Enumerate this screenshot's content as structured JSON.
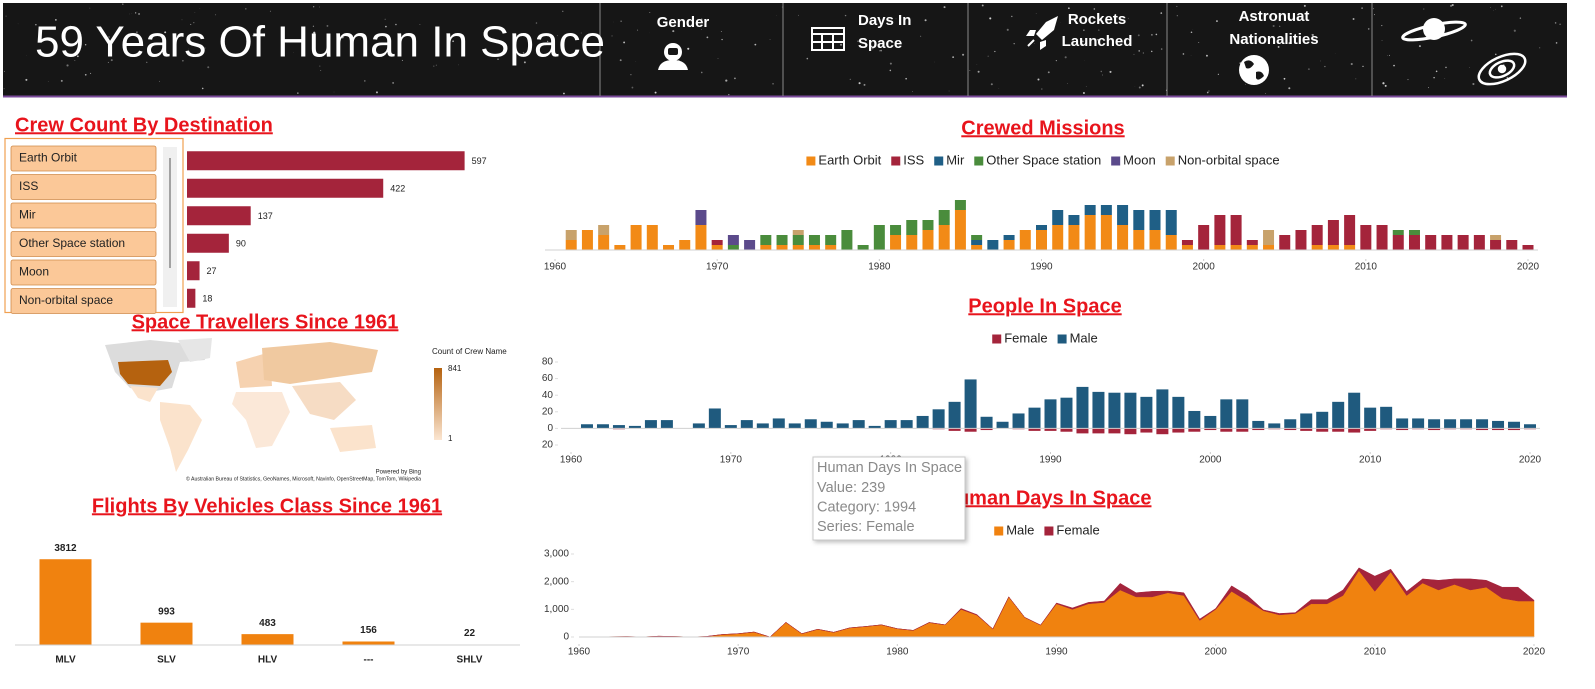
{
  "header": {
    "title": "59 Years Of Human In Space",
    "nav": [
      {
        "lines": [
          "Gender"
        ]
      },
      {
        "lines": [
          "Days In",
          "Space"
        ]
      },
      {
        "lines": [
          "Rockets",
          "Launched"
        ]
      },
      {
        "lines": [
          "Astronuat",
          "Nationalities"
        ]
      }
    ]
  },
  "map": {
    "title": "Space Travellers Since 1961",
    "legend_title": "Count of Crew Name",
    "legend_max": 841,
    "legend_min": 1,
    "credit": "Powered by Bing",
    "attribution": "© Australian Bureau of Statistics, GeoNames, Microsoft, Navinfo, OpenStreetMap, TomTom, Wikipedia"
  },
  "tooltip": {
    "title": "Human Days In Space",
    "lines": [
      "Value: 239",
      "Category: 1994",
      "Series: Female"
    ]
  },
  "chart_data": [
    {
      "type": "bar",
      "horizontal": true,
      "title": "Crew Count By Destination",
      "categories": [
        "Earth Orbit",
        "ISS",
        "Mir",
        "Other Space station",
        "Moon",
        "Non-orbital space"
      ],
      "values": [
        597,
        422,
        137,
        90,
        27,
        18
      ],
      "color": "#a4243b",
      "xlim": [
        0,
        600
      ]
    },
    {
      "type": "bar",
      "stacked": true,
      "title": "Crewed Missions",
      "legend": "top",
      "x": [
        1961,
        1962,
        1963,
        1964,
        1965,
        1966,
        1967,
        1968,
        1969,
        1970,
        1971,
        1972,
        1973,
        1974,
        1975,
        1976,
        1977,
        1978,
        1979,
        1980,
        1981,
        1982,
        1983,
        1984,
        1985,
        1986,
        1987,
        1988,
        1989,
        1990,
        1991,
        1992,
        1993,
        1994,
        1995,
        1996,
        1997,
        1998,
        1999,
        2000,
        2001,
        2002,
        2003,
        2004,
        2005,
        2006,
        2007,
        2008,
        2009,
        2010,
        2011,
        2012,
        2013,
        2014,
        2015,
        2016,
        2017,
        2018,
        2019,
        2020
      ],
      "xlim": [
        1960,
        2020
      ],
      "xticks": [
        1960,
        1970,
        1980,
        1990,
        2000,
        2010,
        2020
      ],
      "ylim": [
        0,
        10
      ],
      "series": [
        {
          "name": "Earth Orbit",
          "color": "#f28a16",
          "values": [
            2,
            4,
            3,
            1,
            5,
            5,
            1,
            2,
            5,
            1,
            0,
            0,
            1,
            1,
            1,
            1,
            1,
            0,
            0,
            0,
            3,
            3,
            4,
            5,
            8,
            1,
            0,
            2,
            4,
            4,
            5,
            5,
            7,
            7,
            5,
            4,
            4,
            3,
            1,
            0,
            1,
            1,
            1,
            1,
            0,
            0,
            1,
            1,
            1,
            0,
            0,
            0,
            0,
            0,
            0,
            0,
            0,
            0,
            0,
            0
          ]
        },
        {
          "name": "ISS",
          "color": "#a4243b",
          "values": [
            0,
            0,
            0,
            0,
            0,
            0,
            0,
            0,
            0,
            1,
            0,
            0,
            0,
            0,
            0,
            0,
            0,
            0,
            0,
            0,
            0,
            0,
            0,
            0,
            0,
            0,
            0,
            0,
            0,
            0,
            0,
            0,
            0,
            0,
            0,
            0,
            0,
            0,
            1,
            5,
            6,
            6,
            1,
            0,
            3,
            4,
            4,
            5,
            6,
            5,
            5,
            3,
            3,
            3,
            3,
            3,
            3,
            2,
            2,
            1
          ]
        },
        {
          "name": "Mir",
          "color": "#1f5f86",
          "values": [
            0,
            0,
            0,
            0,
            0,
            0,
            0,
            0,
            0,
            0,
            0,
            0,
            0,
            0,
            0,
            0,
            0,
            0,
            0,
            0,
            0,
            0,
            0,
            0,
            0,
            1,
            2,
            1,
            0,
            1,
            3,
            2,
            2,
            2,
            4,
            4,
            4,
            5,
            0,
            0,
            0,
            0,
            0,
            0,
            0,
            0,
            0,
            0,
            0,
            0,
            0,
            0,
            0,
            0,
            0,
            0,
            0,
            0,
            0,
            0
          ]
        },
        {
          "name": "Other Space station",
          "color": "#4a8c3c",
          "values": [
            0,
            0,
            0,
            0,
            0,
            0,
            0,
            0,
            0,
            0,
            1,
            0,
            2,
            2,
            2,
            2,
            2,
            4,
            1,
            5,
            2,
            3,
            2,
            3,
            2,
            1,
            0,
            0,
            0,
            0,
            0,
            0,
            0,
            0,
            0,
            0,
            0,
            0,
            0,
            0,
            0,
            0,
            0,
            0,
            0,
            0,
            0,
            0,
            0,
            0,
            0,
            1,
            1,
            0,
            0,
            0,
            0,
            0,
            0,
            0
          ]
        },
        {
          "name": "Moon",
          "color": "#5b4a8b",
          "values": [
            0,
            0,
            0,
            0,
            0,
            0,
            0,
            0,
            3,
            0,
            2,
            2,
            0,
            0,
            0,
            0,
            0,
            0,
            0,
            0,
            0,
            0,
            0,
            0,
            0,
            0,
            0,
            0,
            0,
            0,
            0,
            0,
            0,
            0,
            0,
            0,
            0,
            0,
            0,
            0,
            0,
            0,
            0,
            0,
            0,
            0,
            0,
            0,
            0,
            0,
            0,
            0,
            0,
            0,
            0,
            0,
            0,
            0,
            0,
            0
          ]
        },
        {
          "name": "Non-orbital space",
          "color": "#c8a26b",
          "values": [
            2,
            0,
            2,
            0,
            0,
            0,
            0,
            0,
            0,
            0,
            0,
            0,
            0,
            0,
            1,
            0,
            0,
            0,
            0,
            0,
            0,
            0,
            0,
            0,
            0,
            0,
            0,
            0,
            0,
            0,
            0,
            0,
            0,
            0,
            0,
            0,
            0,
            0,
            0,
            0,
            0,
            0,
            0,
            3,
            0,
            0,
            0,
            0,
            0,
            0,
            0,
            0,
            0,
            0,
            0,
            0,
            0,
            1,
            0,
            0
          ]
        }
      ]
    },
    {
      "type": "bar",
      "stacked": true,
      "title": "People In Space",
      "legend": "top",
      "x": [
        1961,
        1962,
        1963,
        1964,
        1965,
        1966,
        1967,
        1968,
        1969,
        1970,
        1971,
        1972,
        1973,
        1974,
        1975,
        1976,
        1977,
        1978,
        1979,
        1980,
        1981,
        1982,
        1983,
        1984,
        1985,
        1986,
        1987,
        1988,
        1989,
        1990,
        1991,
        1992,
        1993,
        1994,
        1995,
        1996,
        1997,
        1998,
        1999,
        2000,
        2001,
        2002,
        2003,
        2004,
        2005,
        2006,
        2007,
        2008,
        2009,
        2010,
        2011,
        2012,
        2013,
        2014,
        2015,
        2016,
        2017,
        2018,
        2019,
        2020
      ],
      "xlim": [
        1960,
        2020
      ],
      "xticks": [
        1960,
        1970,
        1980,
        1990,
        2000,
        2010,
        2020
      ],
      "ylim": [
        -20,
        80
      ],
      "yticks": [
        80,
        60,
        40,
        20,
        0,
        {
          "value": -20,
          "label": "20"
        }
      ],
      "series": [
        {
          "name": "Female",
          "color": "#a4243b",
          "values": [
            0,
            0,
            -1,
            0,
            0,
            0,
            0,
            0,
            0,
            0,
            0,
            0,
            0,
            0,
            0,
            0,
            0,
            0,
            0,
            0,
            0,
            0,
            -1,
            -3,
            -4,
            -2,
            0,
            -1,
            -3,
            -3,
            -4,
            -6,
            -6,
            -6,
            -7,
            -5,
            -7,
            -5,
            -4,
            -2,
            -4,
            -4,
            -2,
            -1,
            -2,
            -3,
            -4,
            -4,
            -5,
            -3,
            -1,
            -2,
            -1,
            -2,
            -1,
            -1,
            -2,
            -2,
            -2,
            -1
          ]
        },
        {
          "name": "Male",
          "color": "#1f5a7e",
          "values": [
            5,
            5,
            4,
            3,
            10,
            10,
            0,
            6,
            24,
            4,
            10,
            6,
            12,
            6,
            11,
            8,
            6,
            10,
            3,
            10,
            10,
            15,
            23,
            32,
            59,
            14,
            8,
            18,
            25,
            35,
            37,
            50,
            44,
            43,
            43,
            38,
            47,
            38,
            21,
            15,
            35,
            35,
            9,
            6,
            11,
            18,
            20,
            32,
            43,
            25,
            26,
            12,
            12,
            11,
            11,
            11,
            11,
            9,
            8,
            5
          ]
        }
      ]
    },
    {
      "type": "area",
      "stacked": true,
      "title": "Human Days In Space",
      "legend": "top",
      "x": [
        1961,
        1962,
        1963,
        1964,
        1965,
        1966,
        1967,
        1968,
        1969,
        1970,
        1971,
        1972,
        1973,
        1974,
        1975,
        1976,
        1977,
        1978,
        1979,
        1980,
        1981,
        1982,
        1983,
        1984,
        1985,
        1986,
        1987,
        1988,
        1989,
        1990,
        1991,
        1992,
        1993,
        1994,
        1995,
        1996,
        1997,
        1998,
        1999,
        2000,
        2001,
        2002,
        2003,
        2004,
        2005,
        2006,
        2007,
        2008,
        2009,
        2010,
        2011,
        2012,
        2013,
        2014,
        2015,
        2016,
        2017,
        2018,
        2019,
        2020
      ],
      "xlim": [
        1960,
        2020
      ],
      "xticks": [
        1960,
        1970,
        1980,
        1990,
        2000,
        2010,
        2020
      ],
      "ylim": [
        0,
        3000
      ],
      "yticks": [
        0,
        {
          "value": 1000,
          "label": "1,000"
        },
        {
          "value": 2000,
          "label": "2,000"
        },
        {
          "value": 3000,
          "label": "3,000"
        }
      ],
      "series": [
        {
          "name": "Male",
          "color": "#f0820f",
          "values": [
            1,
            10,
            15,
            3,
            30,
            20,
            0,
            20,
            90,
            120,
            180,
            0,
            530,
            120,
            280,
            170,
            330,
            380,
            440,
            300,
            240,
            520,
            440,
            1000,
            790,
            290,
            1450,
            710,
            430,
            1200,
            1000,
            1200,
            1250,
            1700,
            1450,
            1450,
            1600,
            1500,
            600,
            1000,
            1650,
            1300,
            950,
            800,
            850,
            1200,
            1200,
            1500,
            2400,
            1650,
            2350,
            1500,
            1950,
            1700,
            1900,
            1700,
            1800,
            1400,
            1300,
            1300
          ]
        },
        {
          "name": "Female",
          "color": "#a4243b",
          "values": [
            0,
            0,
            3,
            0,
            0,
            0,
            0,
            0,
            0,
            0,
            0,
            0,
            0,
            0,
            0,
            0,
            0,
            0,
            0,
            0,
            0,
            8,
            0,
            30,
            20,
            0,
            0,
            0,
            0,
            30,
            50,
            50,
            50,
            239,
            150,
            200,
            60,
            100,
            50,
            30,
            200,
            200,
            30,
            50,
            30,
            150,
            150,
            200,
            100,
            550,
            100,
            150,
            150,
            350,
            200,
            400,
            250,
            400,
            500,
            30
          ]
        }
      ]
    },
    {
      "type": "bar",
      "title": "Flights By Vehicles Class Since 1961",
      "categories": [
        "MLV",
        "SLV",
        "HLV",
        "---",
        "SHLV"
      ],
      "values": [
        3812,
        993,
        483,
        156,
        22
      ],
      "color": "#f0820f",
      "ylim": [
        0,
        4000
      ],
      "data_labels": true
    }
  ]
}
